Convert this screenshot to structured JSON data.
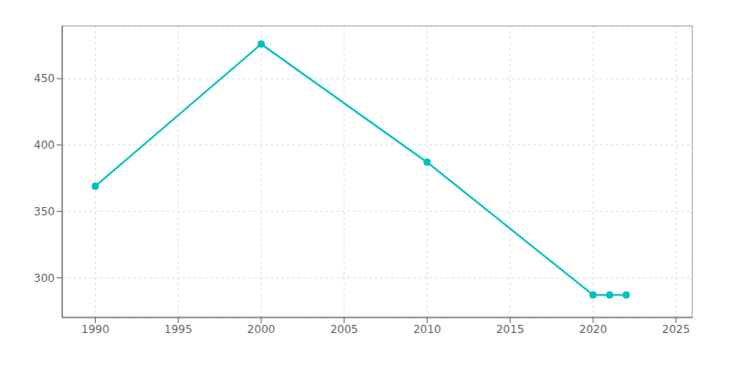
{
  "chart_data": {
    "type": "line",
    "x": [
      1990,
      2000,
      2010,
      2020,
      2021,
      2022
    ],
    "values": [
      369,
      476,
      387,
      287,
      287,
      287
    ],
    "color": "#00BFBF",
    "marker": "circle",
    "xlim": [
      1988,
      2026
    ],
    "ylim": [
      270,
      490
    ],
    "xticks": [
      1990,
      1995,
      2000,
      2005,
      2010,
      2015,
      2020,
      2025
    ],
    "yticks": [
      300,
      350,
      400,
      450
    ],
    "grid": true
  }
}
